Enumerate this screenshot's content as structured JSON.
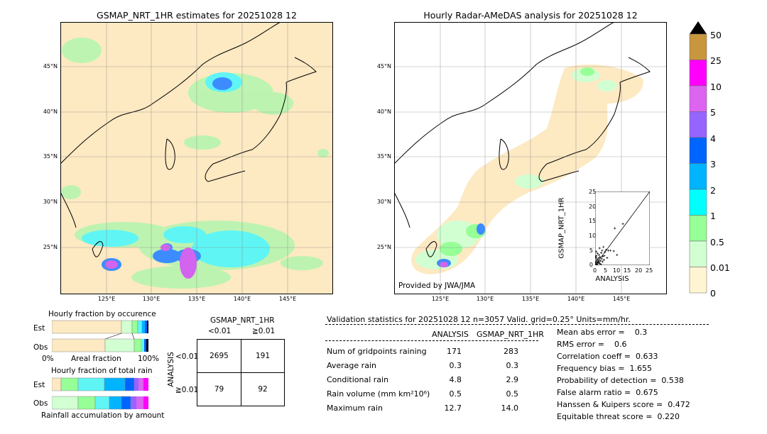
{
  "left_map": {
    "title": "GSMAP_NRT_1HR estimates for 20251028 12",
    "lat_labels": [
      "45°N",
      "40°N",
      "35°N",
      "30°N",
      "25°N"
    ],
    "lon_labels": [
      "125°E",
      "130°E",
      "135°E",
      "140°E",
      "145°E"
    ]
  },
  "right_map": {
    "title": "Hourly Radar-AMeDAS analysis for 20251028 12",
    "lat_labels": [
      "45°N",
      "40°N",
      "35°N",
      "30°N",
      "25°N"
    ],
    "lon_labels": [
      "125°E",
      "130°E",
      "135°E",
      "140°E",
      "145°E"
    ],
    "provider": "Provided by JWA/JMA"
  },
  "colorbar": {
    "labels": [
      "50",
      "25",
      "10",
      "5",
      "4",
      "3",
      "2",
      "1",
      "0.5",
      "0.01",
      "0"
    ],
    "colors": [
      "#c8963c",
      "#ff00ff",
      "#dc64f0",
      "#9664ff",
      "#0064ff",
      "#00b4ff",
      "#00ffff",
      "#96ff96",
      "#d2ffd2",
      "#fff5d2"
    ]
  },
  "occurrence": {
    "title": "Hourly fraction by occurence",
    "row_labels": [
      "Est",
      "Obs"
    ],
    "axis_left": "0%",
    "axis_mid": "Areal fraction",
    "axis_right": "100%"
  },
  "total_rain": {
    "title": "Hourly fraction of total rain",
    "row_labels": [
      "Est",
      "Obs"
    ],
    "caption": "Rainfall accumulation by amount"
  },
  "contingency": {
    "title": "GSMAP_NRT_1HR",
    "col_labels": [
      "<0.01",
      "≧0.01"
    ],
    "side_label": "ANALYSIS",
    "row_labels": [
      "<0.01",
      "≧0.01"
    ],
    "cells": [
      [
        "2695",
        "191"
      ],
      [
        "79",
        "92"
      ]
    ]
  },
  "validation": {
    "header": "Validation statistics for 20251028 12  n=3057 Valid. grid=0.25° Units=mm/hr.",
    "col_analysis": "ANALYSIS",
    "col_gsmap": "GSMAP_NRT_1HR",
    "rows": [
      {
        "label": "Num of gridpoints raining",
        "a": "171",
        "g": "283"
      },
      {
        "label": "Average rain",
        "a": "0.3",
        "g": "0.3"
      },
      {
        "label": "Conditional rain",
        "a": "4.8",
        "g": "2.9"
      },
      {
        "label": "Rain volume (mm km²10⁶)",
        "a": "0.5",
        "g": "0.5"
      },
      {
        "label": "Maximum rain",
        "a": "12.7",
        "g": "14.0"
      }
    ],
    "scores": [
      "Mean abs error =    0.3",
      "RMS error =    0.6",
      "Correlation coeff =  0.633",
      "Frequency bias =  1.655",
      "Probability of detection =  0.538",
      "False alarm ratio =  0.675",
      "Hanssen & Kuipers score =  0.472",
      "Equitable threat score =  0.220"
    ]
  },
  "chart_data": {
    "type": "scatter",
    "xlabel": "ANALYSIS",
    "ylabel": "GSMAP_NRT_1HR",
    "xlim": [
      0,
      25
    ],
    "ylim": [
      0,
      25
    ],
    "ticks": [
      "0",
      "5",
      "10",
      "15",
      "20",
      "25"
    ],
    "points": [
      [
        0.3,
        0.5
      ],
      [
        0.5,
        1.2
      ],
      [
        0.8,
        0.4
      ],
      [
        1.0,
        2.0
      ],
      [
        1.2,
        0.8
      ],
      [
        1.5,
        1.5
      ],
      [
        0.4,
        2.5
      ],
      [
        2.0,
        0.6
      ],
      [
        2.2,
        2.8
      ],
      [
        0.6,
        3.2
      ],
      [
        1.8,
        3.5
      ],
      [
        2.5,
        1.5
      ],
      [
        3.0,
        2.2
      ],
      [
        0.2,
        1.0
      ],
      [
        1.1,
        4.0
      ],
      [
        2.8,
        4.2
      ],
      [
        3.5,
        3.0
      ],
      [
        4.0,
        1.8
      ],
      [
        0.9,
        0.2
      ],
      [
        1.6,
        2.4
      ],
      [
        3.2,
        5.0
      ],
      [
        4.5,
        4.5
      ],
      [
        5.0,
        5.2
      ],
      [
        4.2,
        3.2
      ],
      [
        2.0,
        5.8
      ],
      [
        0.5,
        4.6
      ],
      [
        1.4,
        0.9
      ],
      [
        6.0,
        5.0
      ],
      [
        7.0,
        5.0
      ],
      [
        8.5,
        4.8
      ],
      [
        10.0,
        3.5
      ],
      [
        5.5,
        2.5
      ],
      [
        12.7,
        14.0
      ],
      [
        9.0,
        12.5
      ],
      [
        3.8,
        6.2
      ],
      [
        0.7,
        1.7
      ],
      [
        2.6,
        0.3
      ],
      [
        1.9,
        1.1
      ],
      [
        0.3,
        2.9
      ],
      [
        3.4,
        1.2
      ]
    ]
  }
}
